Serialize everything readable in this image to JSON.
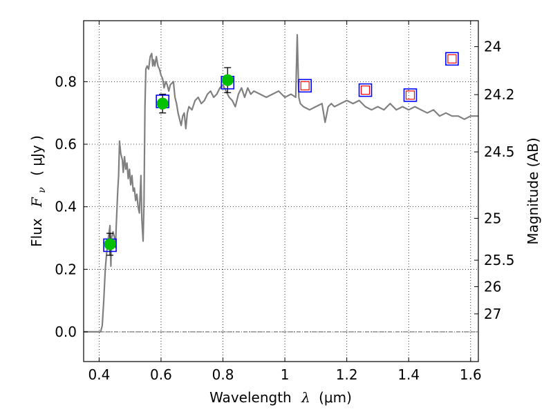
{
  "chart_data": {
    "type": "scatter",
    "xlabel": "Wavelength",
    "xlabel_symbol": "λ",
    "xlabel_units": "(μm)",
    "ylabel": "Flux",
    "ylabel_symbol": "F",
    "ylabel_subscript": "ν",
    "ylabel_units": "( μJy )",
    "y2label": "Magnitude (AB)",
    "xlim": [
      0.35,
      1.625
    ],
    "ylim": [
      -0.095,
      0.995
    ],
    "grid": true,
    "x_ticks": [
      0.4,
      0.6,
      0.8,
      1.0,
      1.2,
      1.4,
      1.6
    ],
    "x_tick_labels": [
      "0.4",
      "0.6",
      "0.8",
      "1",
      "1.2",
      "1.4",
      "1.6"
    ],
    "y_ticks": [
      0.0,
      0.2,
      0.4,
      0.6,
      0.8
    ],
    "y_tick_labels": [
      "0.0",
      "0.2",
      "0.4",
      "0.6",
      "0.8"
    ],
    "mag_ticks": [
      24.0,
      24.2,
      24.5,
      25.0,
      25.5,
      26.0,
      27.0
    ],
    "mag_tick_labels": [
      "24",
      "24.2",
      "24.5",
      "25",
      "25.5",
      "26",
      "27"
    ],
    "zero_line": 0.0,
    "colors": {
      "template": "#808080",
      "observed": "#00c000",
      "model_box": "#0000ff",
      "upper_box": "#ff0000",
      "errorbar": "#000000",
      "zero_line": "#404040"
    },
    "series": [
      {
        "name": "template_spectrum",
        "style": "line",
        "x": [
          0.35,
          0.39,
          0.405,
          0.41,
          0.415,
          0.42,
          0.425,
          0.43,
          0.435,
          0.438,
          0.44,
          0.445,
          0.45,
          0.453,
          0.455,
          0.46,
          0.463,
          0.466,
          0.47,
          0.475,
          0.478,
          0.482,
          0.486,
          0.49,
          0.494,
          0.498,
          0.502,
          0.506,
          0.51,
          0.514,
          0.518,
          0.522,
          0.526,
          0.53,
          0.535,
          0.538,
          0.542,
          0.545,
          0.548,
          0.551,
          0.555,
          0.56,
          0.565,
          0.57,
          0.573,
          0.576,
          0.58,
          0.585,
          0.59,
          0.595,
          0.6,
          0.605,
          0.61,
          0.615,
          0.62,
          0.625,
          0.63,
          0.64,
          0.645,
          0.65,
          0.655,
          0.66,
          0.665,
          0.67,
          0.675,
          0.68,
          0.685,
          0.69,
          0.7,
          0.71,
          0.72,
          0.73,
          0.74,
          0.75,
          0.76,
          0.77,
          0.78,
          0.79,
          0.8,
          0.81,
          0.82,
          0.83,
          0.84,
          0.85,
          0.86,
          0.87,
          0.88,
          0.89,
          0.9,
          0.92,
          0.94,
          0.96,
          0.98,
          1.0,
          1.02,
          1.035,
          1.04,
          1.045,
          1.05,
          1.06,
          1.08,
          1.1,
          1.12,
          1.13,
          1.14,
          1.15,
          1.16,
          1.18,
          1.2,
          1.22,
          1.24,
          1.26,
          1.28,
          1.3,
          1.32,
          1.34,
          1.36,
          1.38,
          1.4,
          1.42,
          1.44,
          1.46,
          1.48,
          1.5,
          1.52,
          1.54,
          1.56,
          1.58,
          1.6,
          1.625
        ],
        "y": [
          0.0,
          0.0,
          0.0,
          0.02,
          0.1,
          0.2,
          0.26,
          0.3,
          0.34,
          0.21,
          0.3,
          0.32,
          0.3,
          0.27,
          0.33,
          0.45,
          0.5,
          0.61,
          0.57,
          0.55,
          0.51,
          0.56,
          0.52,
          0.54,
          0.49,
          0.52,
          0.47,
          0.5,
          0.45,
          0.46,
          0.42,
          0.44,
          0.4,
          0.38,
          0.5,
          0.36,
          0.29,
          0.41,
          0.72,
          0.84,
          0.85,
          0.84,
          0.88,
          0.89,
          0.85,
          0.87,
          0.85,
          0.88,
          0.85,
          0.84,
          0.82,
          0.81,
          0.78,
          0.8,
          0.79,
          0.77,
          0.79,
          0.8,
          0.75,
          0.73,
          0.7,
          0.68,
          0.66,
          0.69,
          0.7,
          0.65,
          0.7,
          0.72,
          0.71,
          0.74,
          0.75,
          0.73,
          0.74,
          0.76,
          0.77,
          0.75,
          0.76,
          0.78,
          0.79,
          0.77,
          0.75,
          0.74,
          0.72,
          0.76,
          0.78,
          0.75,
          0.78,
          0.76,
          0.77,
          0.76,
          0.75,
          0.76,
          0.77,
          0.75,
          0.76,
          0.75,
          0.95,
          0.75,
          0.73,
          0.72,
          0.71,
          0.72,
          0.73,
          0.67,
          0.72,
          0.73,
          0.72,
          0.73,
          0.74,
          0.73,
          0.74,
          0.72,
          0.71,
          0.72,
          0.71,
          0.73,
          0.71,
          0.72,
          0.71,
          0.72,
          0.71,
          0.7,
          0.71,
          0.69,
          0.7,
          0.69,
          0.69,
          0.68,
          0.69,
          0.69
        ]
      },
      {
        "name": "observed_photometry",
        "style": "marker",
        "x": [
          0.435,
          0.605,
          0.815
        ],
        "y": [
          0.28,
          0.73,
          0.805
        ],
        "yerr": [
          0.035,
          0.03,
          0.04
        ]
      },
      {
        "name": "model_photometry",
        "style": "box",
        "x": [
          0.435,
          0.605,
          0.815,
          1.065,
          1.26,
          1.405,
          1.54
        ],
        "y": [
          0.277,
          0.737,
          0.797,
          0.787,
          0.773,
          0.757,
          0.873
        ]
      },
      {
        "name": "upper_limits",
        "style": "small_box",
        "x": [
          1.065,
          1.26,
          1.405,
          1.54
        ],
        "y": [
          0.787,
          0.773,
          0.757,
          0.873
        ]
      }
    ]
  }
}
